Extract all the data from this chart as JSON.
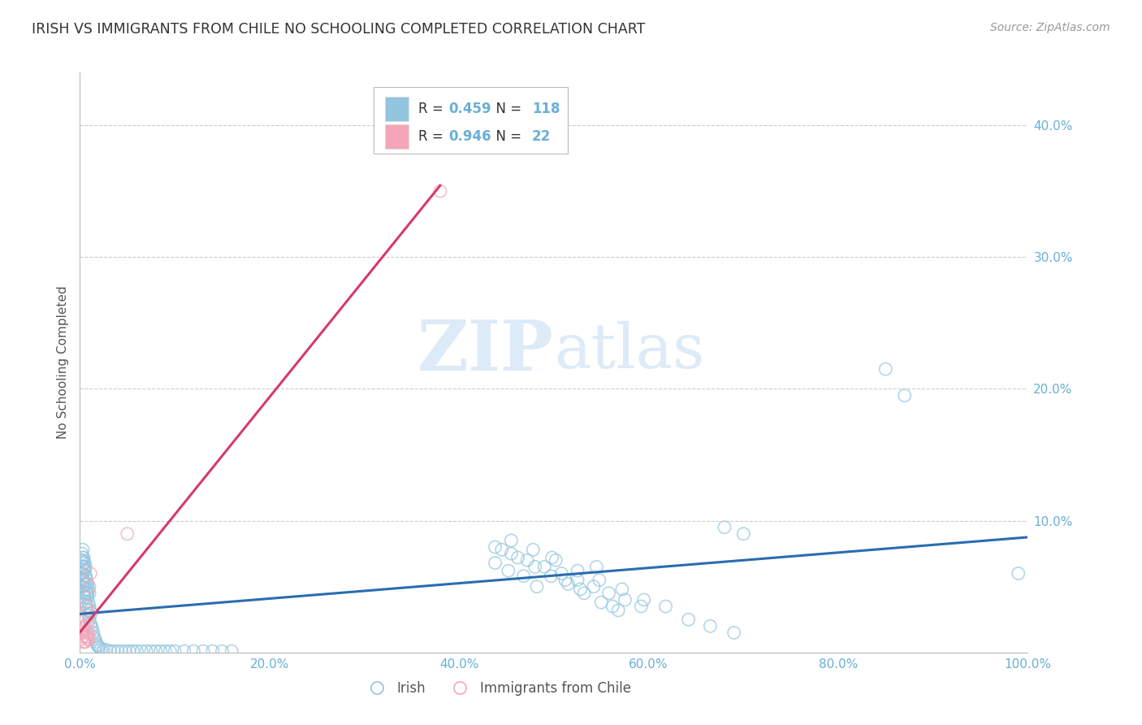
{
  "title": "IRISH VS IMMIGRANTS FROM CHILE NO SCHOOLING COMPLETED CORRELATION CHART",
  "source": "Source: ZipAtlas.com",
  "ylabel": "No Schooling Completed",
  "irish_R": 0.459,
  "irish_N": 118,
  "chile_R": 0.946,
  "chile_N": 22,
  "irish_color": "#92c5de",
  "chile_color": "#f4a6b8",
  "irish_line_color": "#2b6cb0",
  "chile_line_color": "#d63a6a",
  "axis_label_color": "#6aafd6",
  "watermark_color": "#ddeaf7",
  "title_color": "#333333",
  "source_color": "#999999",
  "background_color": "#ffffff",
  "grid_color": "#cccccc",
  "irish_x": [
    0.001,
    0.001,
    0.002,
    0.002,
    0.002,
    0.003,
    0.003,
    0.003,
    0.003,
    0.004,
    0.004,
    0.004,
    0.004,
    0.005,
    0.005,
    0.005,
    0.005,
    0.006,
    0.006,
    0.006,
    0.006,
    0.007,
    0.007,
    0.007,
    0.008,
    0.008,
    0.008,
    0.009,
    0.009,
    0.009,
    0.01,
    0.01,
    0.01,
    0.011,
    0.011,
    0.012,
    0.012,
    0.013,
    0.014,
    0.015,
    0.016,
    0.017,
    0.018,
    0.019,
    0.02,
    0.022,
    0.025,
    0.028,
    0.032,
    0.036,
    0.04,
    0.044,
    0.048,
    0.052,
    0.056,
    0.06,
    0.065,
    0.07,
    0.075,
    0.08,
    0.085,
    0.09,
    0.095,
    0.1,
    0.11,
    0.12,
    0.13,
    0.14,
    0.15,
    0.16,
    0.003,
    0.004,
    0.005,
    0.006,
    0.007,
    0.008,
    0.438,
    0.452,
    0.468,
    0.482,
    0.498,
    0.512,
    0.528,
    0.545,
    0.562,
    0.438,
    0.455,
    0.472,
    0.49,
    0.508,
    0.525,
    0.542,
    0.558,
    0.575,
    0.592,
    0.455,
    0.478,
    0.502,
    0.525,
    0.548,
    0.572,
    0.595,
    0.618,
    0.642,
    0.665,
    0.69,
    0.445,
    0.462,
    0.48,
    0.497,
    0.515,
    0.532,
    0.55,
    0.568,
    0.68,
    0.7,
    0.85,
    0.87,
    0.99
  ],
  "irish_y": [
    0.06,
    0.07,
    0.055,
    0.065,
    0.075,
    0.05,
    0.06,
    0.07,
    0.078,
    0.045,
    0.055,
    0.065,
    0.072,
    0.042,
    0.052,
    0.062,
    0.068,
    0.038,
    0.048,
    0.058,
    0.065,
    0.035,
    0.045,
    0.055,
    0.032,
    0.042,
    0.052,
    0.028,
    0.038,
    0.048,
    0.025,
    0.035,
    0.045,
    0.022,
    0.032,
    0.02,
    0.03,
    0.018,
    0.015,
    0.012,
    0.01,
    0.008,
    0.006,
    0.005,
    0.004,
    0.003,
    0.002,
    0.002,
    0.001,
    0.001,
    0.001,
    0.001,
    0.001,
    0.001,
    0.001,
    0.001,
    0.001,
    0.001,
    0.001,
    0.001,
    0.001,
    0.001,
    0.001,
    0.001,
    0.001,
    0.001,
    0.001,
    0.001,
    0.001,
    0.001,
    0.072,
    0.068,
    0.063,
    0.058,
    0.052,
    0.045,
    0.068,
    0.062,
    0.058,
    0.05,
    0.072,
    0.055,
    0.048,
    0.065,
    0.035,
    0.08,
    0.075,
    0.07,
    0.065,
    0.06,
    0.055,
    0.05,
    0.045,
    0.04,
    0.035,
    0.085,
    0.078,
    0.07,
    0.062,
    0.055,
    0.048,
    0.04,
    0.035,
    0.025,
    0.02,
    0.015,
    0.078,
    0.072,
    0.065,
    0.058,
    0.052,
    0.045,
    0.038,
    0.032,
    0.095,
    0.09,
    0.215,
    0.195,
    0.06
  ],
  "chile_x": [
    0.001,
    0.002,
    0.003,
    0.003,
    0.004,
    0.005,
    0.006,
    0.006,
    0.007,
    0.008,
    0.008,
    0.009,
    0.009,
    0.01,
    0.01,
    0.011,
    0.004,
    0.007,
    0.05,
    0.008,
    0.006,
    0.38
  ],
  "chile_y": [
    0.01,
    0.015,
    0.012,
    0.018,
    0.008,
    0.02,
    0.015,
    0.025,
    0.012,
    0.01,
    0.022,
    0.015,
    0.03,
    0.01,
    0.05,
    0.06,
    0.008,
    0.035,
    0.09,
    0.012,
    0.008,
    0.35
  ],
  "xlim": [
    0.0,
    1.0
  ],
  "ylim": [
    0.0,
    0.44
  ],
  "xticks": [
    0.0,
    0.2,
    0.4,
    0.6,
    0.8,
    1.0
  ],
  "xtick_labels": [
    "0.0%",
    "20.0%",
    "40.0%",
    "60.0%",
    "80.0%",
    "100.0%"
  ],
  "yticks": [
    0.0,
    0.1,
    0.2,
    0.3,
    0.4
  ],
  "ytick_labels": [
    "",
    "10.0%",
    "20.0%",
    "30.0%",
    "40.0%"
  ]
}
